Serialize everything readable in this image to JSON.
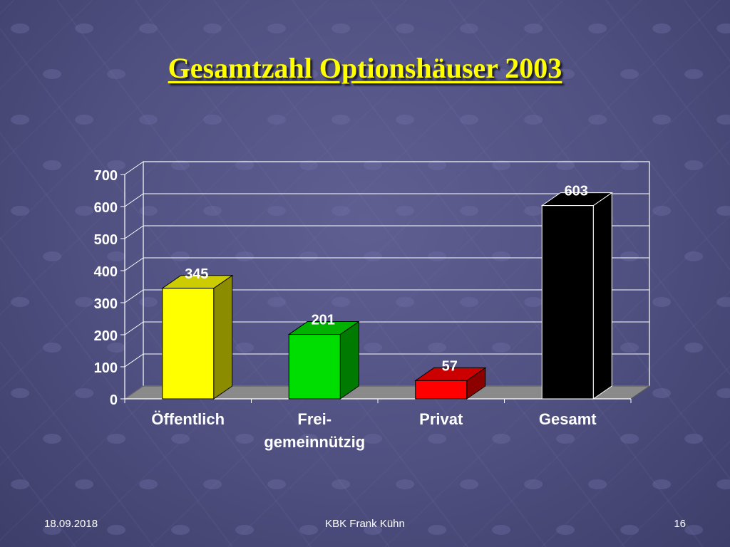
{
  "slide": {
    "title": "Gesamtzahl Optionshäuser 2003"
  },
  "footer": {
    "date": "18.09.2018",
    "author": "KBK Frank Kühn",
    "page": "16"
  },
  "colors": {
    "title": "#ffff00",
    "background": "#55558a"
  },
  "chart_data": {
    "type": "bar",
    "categories": [
      "Öffentlich",
      "Frei-\ngemeinnützig",
      "Privat",
      "Gesamt"
    ],
    "values": [
      345,
      201,
      57,
      603
    ],
    "data_labels": [
      "345",
      "201",
      "57",
      "603"
    ],
    "bar_colors": [
      "#ffff00",
      "#00dd00",
      "#ff0000",
      "#000000"
    ],
    "ylim": [
      0,
      700
    ],
    "yticks": [
      0,
      100,
      200,
      300,
      400,
      500,
      600,
      700
    ],
    "grid": true,
    "legend": "none",
    "style": "3d-columns",
    "xlabel": "",
    "ylabel": ""
  }
}
